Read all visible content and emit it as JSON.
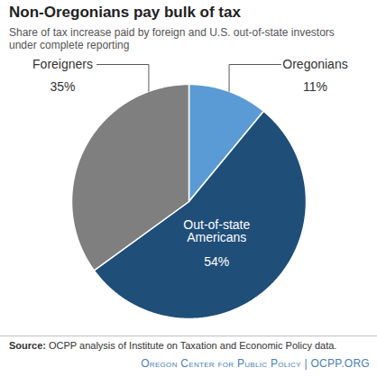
{
  "chart_data": {
    "type": "pie",
    "title": "Non-Oregonians pay bulk of tax",
    "subtitle": "Share of tax increase paid by foreign and U.S. out-of-state investors under complete reporting",
    "categories": [
      "Oregonians",
      "Out-of-state Americans",
      "Foreigners"
    ],
    "values": [
      11,
      54,
      35
    ],
    "value_labels": [
      "11%",
      "54%",
      "35%"
    ],
    "colors": [
      "#5b9bd5",
      "#1f4e79",
      "#7f7f7f"
    ],
    "data_labels": true,
    "source": "Source: OCPP analysis of Institute on Taxation and Economic Policy data.",
    "credit": "Oregon Center for Public Policy | OCPP.ORG"
  }
}
